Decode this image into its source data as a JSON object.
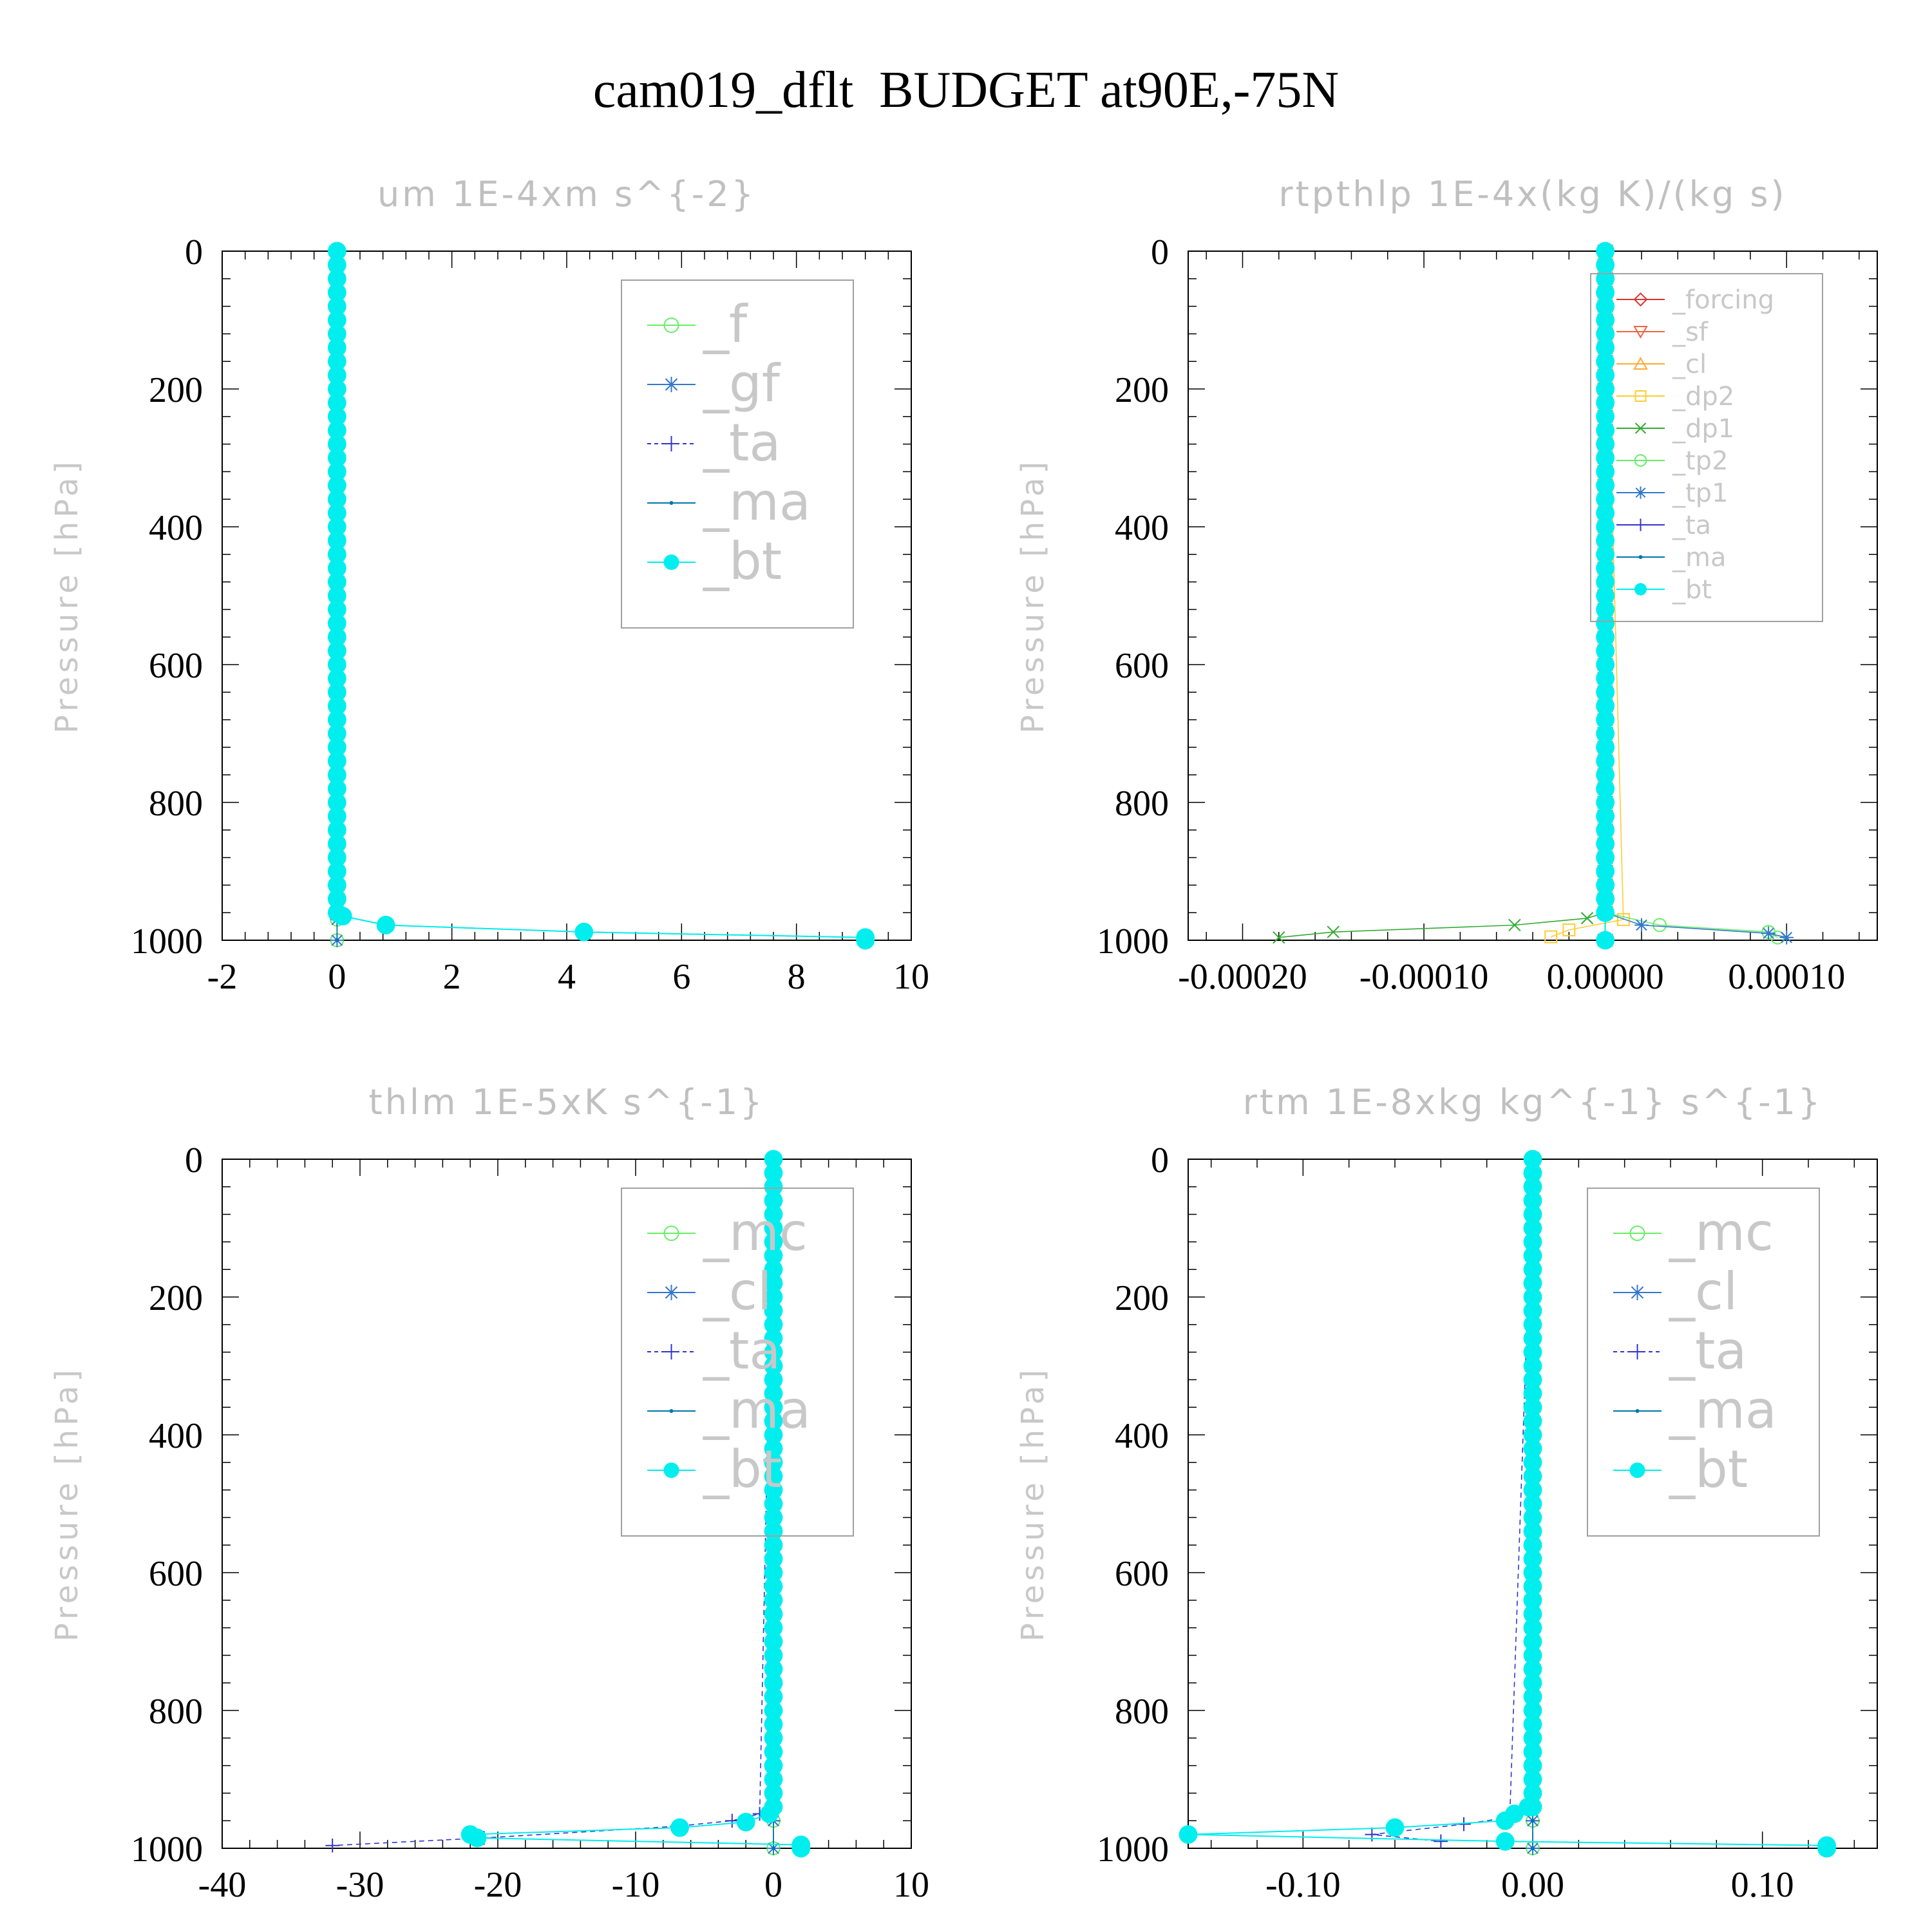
{
  "title": "cam019_dflt  BUDGET at90E,-75N",
  "chart_data": [
    {
      "type": "line",
      "title": "um  1E-4xm s^{-2}",
      "ylabel": "Pressure [hPa]",
      "xlim": [
        -2,
        10
      ],
      "ylim": [
        1000,
        0
      ],
      "xticks": [
        "-2",
        "0",
        "2",
        "4",
        "6",
        "8",
        "10"
      ],
      "yticks": [
        "0",
        "200",
        "400",
        "600",
        "800",
        "1000"
      ],
      "legend": {
        "position": "top-right",
        "large": true
      },
      "series": [
        {
          "name": "_f",
          "color": "#66ee66",
          "marker": "circle-open",
          "x": [
            0,
            0,
            0
          ],
          "y": [
            0,
            970,
            1000
          ]
        },
        {
          "name": "_gf",
          "color": "#3377cc",
          "marker": "star",
          "x": [
            0,
            0,
            0
          ],
          "y": [
            0,
            970,
            1000
          ]
        },
        {
          "name": "_ta",
          "color": "#3333cc",
          "marker": "plus",
          "dash": true,
          "x": [
            0,
            0.1,
            0.85,
            4.3,
            9.2
          ],
          "y": [
            0,
            965,
            978,
            988,
            996
          ]
        },
        {
          "name": "_ma",
          "color": "#0077aa",
          "marker": "dot",
          "x": [
            0,
            0,
            0
          ],
          "y": [
            0,
            970,
            1000
          ]
        },
        {
          "name": "_bt",
          "color": "#00eeee",
          "marker": "filled",
          "x": [
            0,
            0.1,
            0.85,
            4.3,
            9.2,
            9.2
          ],
          "y": [
            0,
            965,
            978,
            988,
            996,
            1000
          ]
        }
      ]
    },
    {
      "type": "line",
      "title": "rtpthlp  1E-4x(kg K)/(kg s)",
      "ylabel": "Pressure [hPa]",
      "xlim": [
        -0.00023,
        0.00015
      ],
      "ylim": [
        1000,
        0
      ],
      "xticks": [
        "-0.00020",
        "-0.00010",
        "0.00000",
        "0.00010"
      ],
      "yticks": [
        "0",
        "200",
        "400",
        "600",
        "800",
        "1000"
      ],
      "legend": {
        "position": "top-right",
        "large": false
      },
      "series": [
        {
          "name": "_forcing",
          "color": "#dd3333",
          "marker": "diamond",
          "x": [
            0,
            0
          ],
          "y": [
            0,
            1000
          ]
        },
        {
          "name": "_sf",
          "color": "#ee6644",
          "marker": "triangle-down",
          "x": [
            0,
            0
          ],
          "y": [
            0,
            1000
          ]
        },
        {
          "name": "_cl",
          "color": "#ffaa33",
          "marker": "triangle-up",
          "x": [
            0,
            0
          ],
          "y": [
            0,
            1000
          ]
        },
        {
          "name": "_dp2",
          "color": "#ffcc33",
          "marker": "square",
          "x": [
            0,
            1e-05,
            -2e-05,
            -3e-05
          ],
          "y": [
            0,
            970,
            985,
            995
          ]
        },
        {
          "name": "_dp1",
          "color": "#33aa33",
          "marker": "cross",
          "x": [
            0,
            0,
            -1e-05,
            -5e-05,
            -0.00015,
            -0.00018
          ],
          "y": [
            0,
            960,
            968,
            978,
            988,
            996
          ]
        },
        {
          "name": "_tp2",
          "color": "#66ee66",
          "marker": "circle-open",
          "x": [
            0,
            0,
            3e-05,
            9e-05,
            9.5e-05
          ],
          "y": [
            0,
            960,
            978,
            988,
            996
          ]
        },
        {
          "name": "_tp1",
          "color": "#3377cc",
          "marker": "star",
          "x": [
            0,
            0,
            2e-05,
            9e-05,
            0.0001
          ],
          "y": [
            0,
            960,
            978,
            990,
            996
          ]
        },
        {
          "name": "_ta",
          "color": "#3333cc",
          "marker": "plus",
          "x": [
            0,
            0
          ],
          "y": [
            0,
            1000
          ]
        },
        {
          "name": "_ma",
          "color": "#0077aa",
          "marker": "dot",
          "x": [
            0,
            0
          ],
          "y": [
            0,
            1000
          ]
        },
        {
          "name": "_bt",
          "color": "#00eeee",
          "marker": "filled",
          "x": [
            0,
            0
          ],
          "y": [
            0,
            1000
          ]
        }
      ]
    },
    {
      "type": "line",
      "title": "thlm  1E-5xK s^{-1}",
      "ylabel": "Pressure [hPa]",
      "xlim": [
        -40,
        10
      ],
      "ylim": [
        1000,
        0
      ],
      "xticks": [
        "-40",
        "-30",
        "-20",
        "-10",
        "0",
        "10"
      ],
      "yticks": [
        "0",
        "200",
        "400",
        "600",
        "800",
        "1000"
      ],
      "legend": {
        "position": "top-right",
        "large": true
      },
      "series": [
        {
          "name": "_mc",
          "color": "#66ee66",
          "marker": "circle-open",
          "x": [
            0,
            0,
            0
          ],
          "y": [
            0,
            960,
            1000
          ]
        },
        {
          "name": "_cl",
          "color": "#3377cc",
          "marker": "star",
          "x": [
            0,
            0,
            0
          ],
          "y": [
            0,
            960,
            1000
          ]
        },
        {
          "name": "_ta",
          "color": "#3333cc",
          "marker": "plus",
          "dash": true,
          "x": [
            0,
            -1,
            -3,
            -7,
            -21,
            -32
          ],
          "y": [
            0,
            950,
            960,
            968,
            985,
            996
          ]
        },
        {
          "name": "_ma",
          "color": "#0077aa",
          "marker": "dot",
          "x": [
            0,
            0,
            0
          ],
          "y": [
            0,
            960,
            1000
          ]
        },
        {
          "name": "_bt",
          "color": "#00eeee",
          "marker": "filled",
          "x": [
            0,
            -0.3,
            -2,
            -6.8,
            -22,
            -21.5,
            2,
            2
          ],
          "y": [
            0,
            950,
            962,
            970,
            980,
            985,
            995,
            1000
          ]
        }
      ]
    },
    {
      "type": "line",
      "title": "rtm  1E-8xkg kg^{-1} s^{-1}",
      "ylabel": "Pressure [hPa]",
      "xlim": [
        -0.15,
        0.15
      ],
      "ylim": [
        1000,
        0
      ],
      "xticks": [
        "-0.10",
        "0.00",
        "0.10"
      ],
      "yticks": [
        "0",
        "200",
        "400",
        "600",
        "800",
        "1000"
      ],
      "legend": {
        "position": "top-right",
        "large": true
      },
      "series": [
        {
          "name": "_mc",
          "color": "#66ee66",
          "marker": "circle-open",
          "x": [
            0,
            0,
            0
          ],
          "y": [
            0,
            960,
            1000
          ]
        },
        {
          "name": "_cl",
          "color": "#3377cc",
          "marker": "star",
          "x": [
            0,
            0,
            0
          ],
          "y": [
            0,
            960,
            1000
          ]
        },
        {
          "name": "_ta",
          "color": "#3333cc",
          "marker": "plus",
          "dash": true,
          "x": [
            0,
            -0.01,
            -0.03,
            -0.07,
            -0.04
          ],
          "y": [
            0,
            955,
            965,
            980,
            990
          ]
        },
        {
          "name": "_ma",
          "color": "#0077aa",
          "marker": "dot",
          "x": [
            0,
            0,
            0
          ],
          "y": [
            0,
            960,
            1000
          ]
        },
        {
          "name": "_bt",
          "color": "#00eeee",
          "marker": "filled",
          "x": [
            0,
            -0.002,
            -0.008,
            -0.012,
            -0.06,
            -0.15,
            -0.012,
            0.128,
            0.128
          ],
          "y": [
            0,
            940,
            950,
            960,
            970,
            980,
            990,
            996,
            1000
          ]
        }
      ]
    }
  ]
}
